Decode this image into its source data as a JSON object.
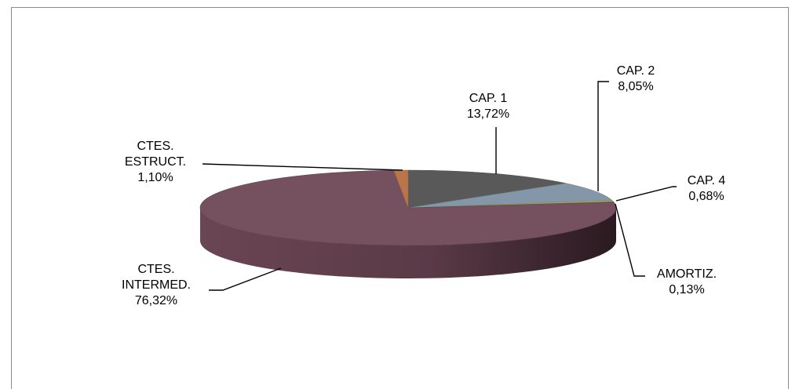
{
  "chart_data": {
    "type": "pie",
    "style": "3d",
    "title": "",
    "slices": [
      {
        "label": "CAP. 1",
        "value_label": "13,72%",
        "value": 13.72,
        "color": "#595959"
      },
      {
        "label": "CAP. 2",
        "value_label": "8,05%",
        "value": 8.05,
        "color": "#8497a9"
      },
      {
        "label": "CAP. 4",
        "value_label": "0,68%",
        "value": 0.68,
        "color": "#9aa86a"
      },
      {
        "label": "AMORTIZ.",
        "value_label": "0,13%",
        "value": 0.13,
        "color": "#b07a3a"
      },
      {
        "label": "CTES. INTERMED.",
        "label_lines": [
          "CTES.",
          "INTERMED."
        ],
        "value_label": "76,32%",
        "value": 76.32,
        "color": "#75505f"
      },
      {
        "label": "CTES. ESTRUCT.",
        "label_lines": [
          "CTES.",
          "ESTRUCT."
        ],
        "value_label": "1,10%",
        "value": 1.1,
        "color": "#b8764a"
      }
    ]
  }
}
